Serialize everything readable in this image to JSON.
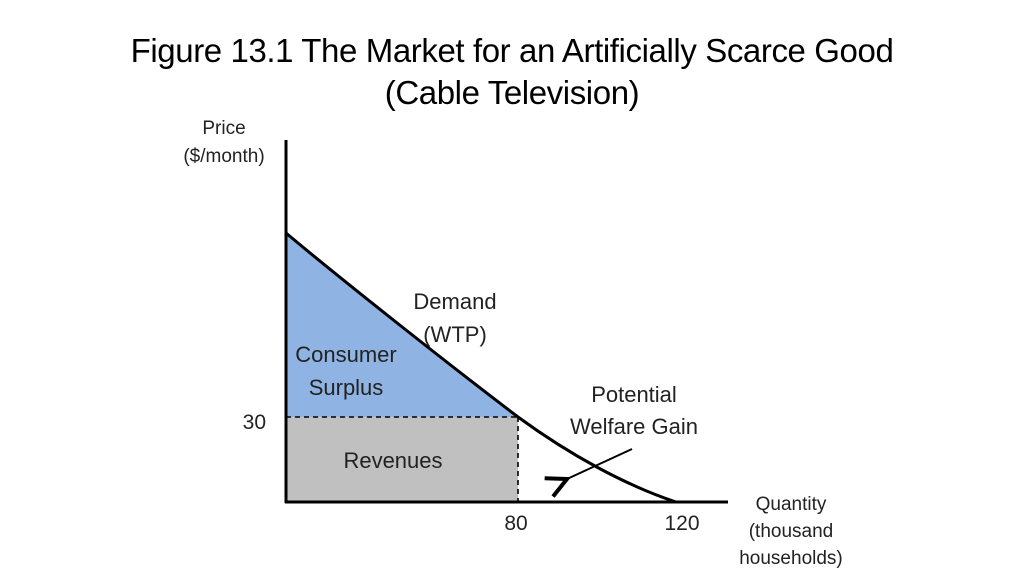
{
  "title": {
    "line1": "Figure 13.1 The Market for an Artificially Scarce Good",
    "line2": "(Cable Television)"
  },
  "axes": {
    "y_label_line1": "Price",
    "y_label_line2": "($/month)",
    "x_label_line1": "Quantity",
    "x_label_line2": "(thousand",
    "x_label_line3": "households)"
  },
  "ticks": {
    "price": "30",
    "quantity_1": "80",
    "quantity_2": "120"
  },
  "regions": {
    "consumer_surplus_line1": "Consumer",
    "consumer_surplus_line2": "Surplus",
    "revenues": "Revenues"
  },
  "curve": {
    "name_line1": "Demand",
    "name_line2": "(WTP)"
  },
  "annotation": {
    "line1": "Potential",
    "line2": "Welfare Gain"
  },
  "colors": {
    "consumer_surplus": "#8fb4e3",
    "revenues": "#c0c0c0",
    "axis": "#000000"
  }
}
